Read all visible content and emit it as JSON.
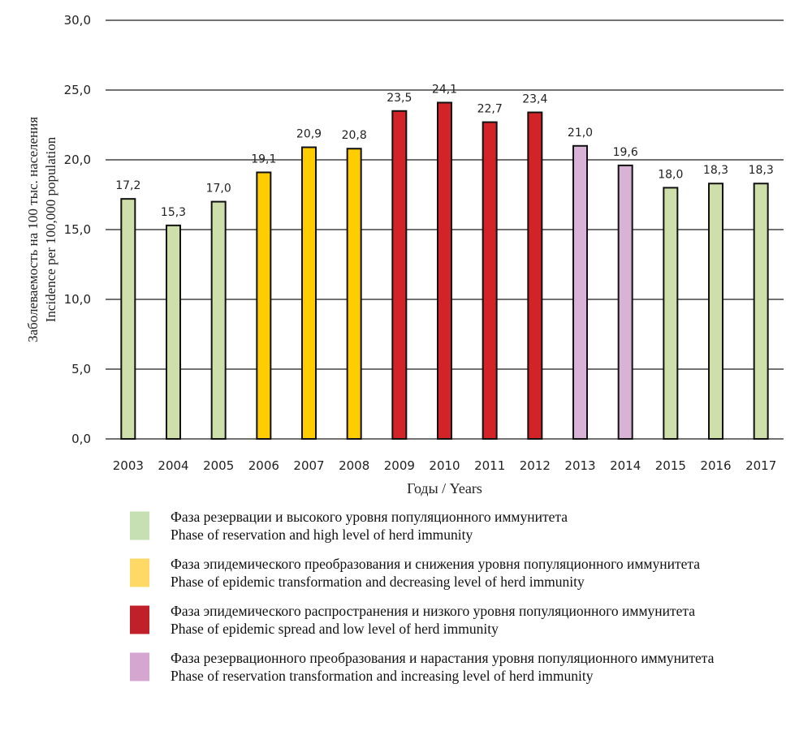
{
  "chart_data": {
    "type": "bar",
    "title": "",
    "xlabel": "Годы / Years",
    "ylabel_lines": [
      "Заболеваемость на 100 тыс. населения",
      "Incidence per 100,000 population"
    ],
    "ylim": [
      0,
      30
    ],
    "yticks": [
      "0,0",
      "5,0",
      "10,0",
      "15,0",
      "20,0",
      "25,0",
      "30,0"
    ],
    "ytick_values": [
      0,
      5,
      10,
      15,
      20,
      25,
      30
    ],
    "grid": true,
    "categories": [
      "2003",
      "2004",
      "2005",
      "2006",
      "2007",
      "2008",
      "2009",
      "2010",
      "2011",
      "2012",
      "2013",
      "2014",
      "2015",
      "2016",
      "2017"
    ],
    "values": [
      17.2,
      15.3,
      17.0,
      19.1,
      20.9,
      20.8,
      23.5,
      24.1,
      22.7,
      23.4,
      21.0,
      19.6,
      18.0,
      18.3,
      18.3
    ],
    "value_labels": [
      "17,2",
      "15,3",
      "17,0",
      "19,1",
      "20,9",
      "20,8",
      "23,5",
      "24,1",
      "22,7",
      "23,4",
      "21,0",
      "19,6",
      "18,0",
      "18,3",
      "18,3"
    ],
    "phase": [
      0,
      0,
      0,
      1,
      1,
      1,
      2,
      2,
      2,
      2,
      3,
      3,
      0,
      0,
      0
    ],
    "legend_position": "bottom",
    "legend": [
      {
        "color": "#cfdfab",
        "swatch": "#c6e0b4",
        "ru": "Фаза резервации и высокого уровня популяционного иммунитета",
        "en": "Phase of reservation and high level of herd immunity"
      },
      {
        "color": "#ffcc00",
        "swatch": "#ffd966",
        "ru": "Фаза эпидемического преобразования и снижения уровня популяционного иммунитета",
        "en": "Phase of epidemic transformation and decreasing level of herd immunity"
      },
      {
        "color": "#d22328",
        "swatch": "#c0202a",
        "ru": "Фаза эпидемического распространения и низкого уровня популяционного иммунитета",
        "en": "Phase of epidemic spread and low level of herd immunity"
      },
      {
        "color": "#d9b3d6",
        "swatch": "#d5a6d0",
        "ru": "Фаза резервационного преобразования и нарастания уровня популяционного иммунитета",
        "en": "Phase of reservation transformation and increasing level of herd immunity"
      }
    ]
  }
}
